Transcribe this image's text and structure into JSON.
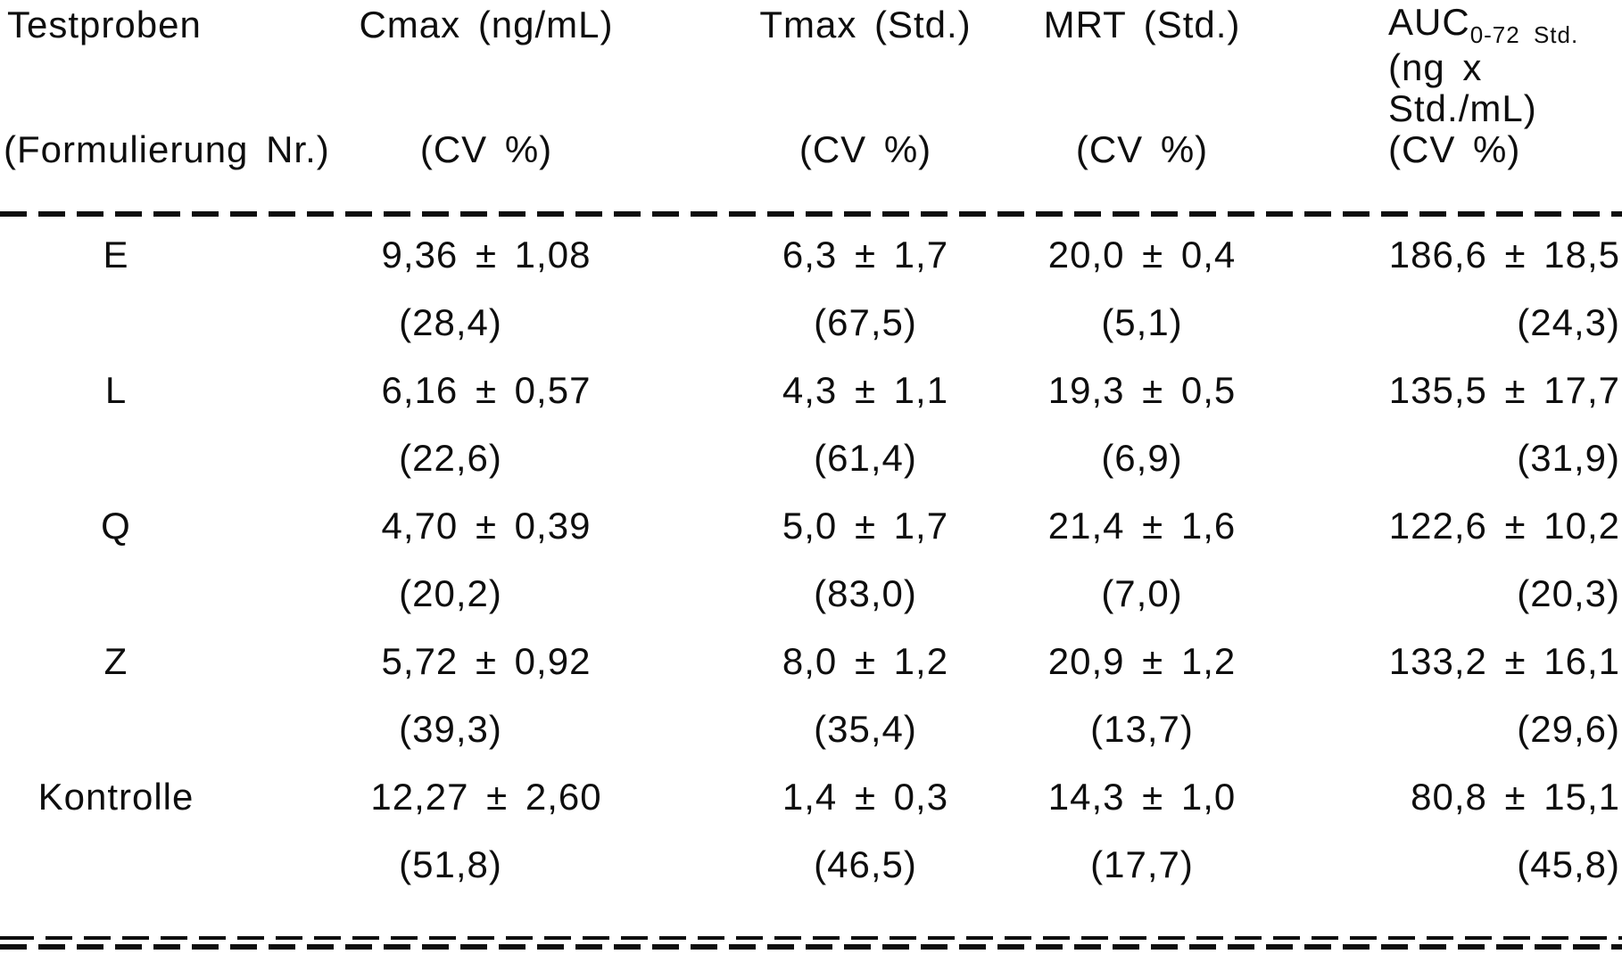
{
  "colors": {
    "ink": "#0e0e0e",
    "background": "#ffffff"
  },
  "table": {
    "header": {
      "testproben": {
        "line1": "Testproben",
        "line2": "(Formulierung Nr.)"
      },
      "cmax": {
        "title": "Cmax (ng/mL)",
        "cv": "(CV %)"
      },
      "tmax": {
        "title": "Tmax (Std.)",
        "cv": "(CV %)"
      },
      "mrt": {
        "title": "MRT (Std.)",
        "cv": "(CV %)"
      },
      "auc": {
        "title_main": "AUC",
        "title_sub": "0-72 Std.",
        "unit_line1": "(ng x",
        "unit_line2": "Std./mL)",
        "cv": "(CV %)"
      }
    },
    "rows": [
      {
        "label": "E",
        "cmax": "9,36 ± 1,08",
        "cmax_cv": "(28,4)",
        "tmax": "6,3 ± 1,7",
        "tmax_cv": "(67,5)",
        "mrt": "20,0 ± 0,4",
        "mrt_cv": "(5,1)",
        "auc": "186,6 ± 18,5",
        "auc_cv": "(24,3)"
      },
      {
        "label": "L",
        "cmax": "6,16 ± 0,57",
        "cmax_cv": "(22,6)",
        "tmax": "4,3 ± 1,1",
        "tmax_cv": "(61,4)",
        "mrt": "19,3 ± 0,5",
        "mrt_cv": "(6,9)",
        "auc": "135,5 ± 17,7",
        "auc_cv": "(31,9)"
      },
      {
        "label": "Q",
        "cmax": "4,70 ± 0,39",
        "cmax_cv": "(20,2)",
        "tmax": "5,0 ± 1,7",
        "tmax_cv": "(83,0)",
        "mrt": "21,4 ± 1,6",
        "mrt_cv": "(7,0)",
        "auc": "122,6 ± 10,2",
        "auc_cv": "(20,3)"
      },
      {
        "label": "Z",
        "cmax": "5,72 ± 0,92",
        "cmax_cv": "(39,3)",
        "tmax": "8,0 ± 1,2",
        "tmax_cv": "(35,4)",
        "mrt": "20,9 ± 1,2",
        "mrt_cv": "(13,7)",
        "auc": "133,2 ± 16,1",
        "auc_cv": "(29,6)"
      },
      {
        "label": "Kontrolle",
        "cmax": "12,27 ± 2,60",
        "cmax_cv": "(51,8)",
        "tmax": "1,4 ± 0,3",
        "tmax_cv": "(46,5)",
        "mrt": "14,3 ± 1,0",
        "mrt_cv": "(17,7)",
        "auc": "80,8 ± 15,1",
        "auc_cv": "(45,8)"
      }
    ]
  }
}
